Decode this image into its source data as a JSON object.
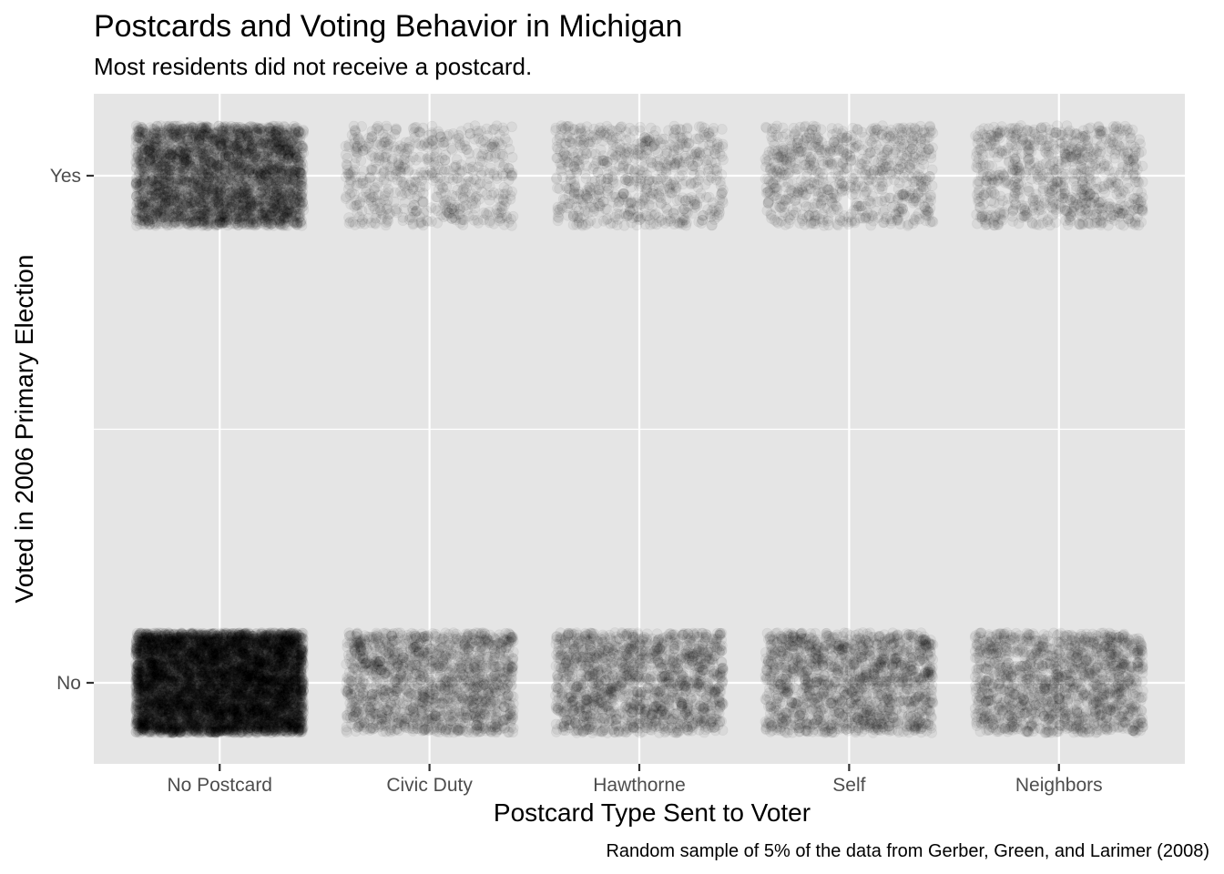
{
  "chart_data": {
    "type": "scatter",
    "title": "Postcards and Voting Behavior in Michigan",
    "subtitle": "Most residents did not receive a postcard.",
    "xlabel": "Postcard Type Sent to Voter",
    "ylabel": "Voted in 2006 Primary Election",
    "caption": "Random sample of 5% of the data from Gerber, Green, and Larimer (2008)",
    "x_categories": [
      "No Postcard",
      "Civic Duty",
      "Hawthorne",
      "Self",
      "Neighbors"
    ],
    "y_categories": [
      "No",
      "Yes"
    ],
    "jitter": true,
    "grid": true,
    "legend": "none",
    "point_color": "#000000",
    "point_alpha": 0.05,
    "panel_background": "#e5e5e5",
    "approx_point_counts": {
      "No Postcard": {
        "No": 6800,
        "Yes": 3100
      },
      "Civic Duty": {
        "No": 1500,
        "Yes": 600
      },
      "Hawthorne": {
        "No": 1500,
        "Yes": 700
      },
      "Self": {
        "No": 1500,
        "Yes": 750
      },
      "Neighbors": {
        "No": 1400,
        "Yes": 800
      }
    }
  }
}
